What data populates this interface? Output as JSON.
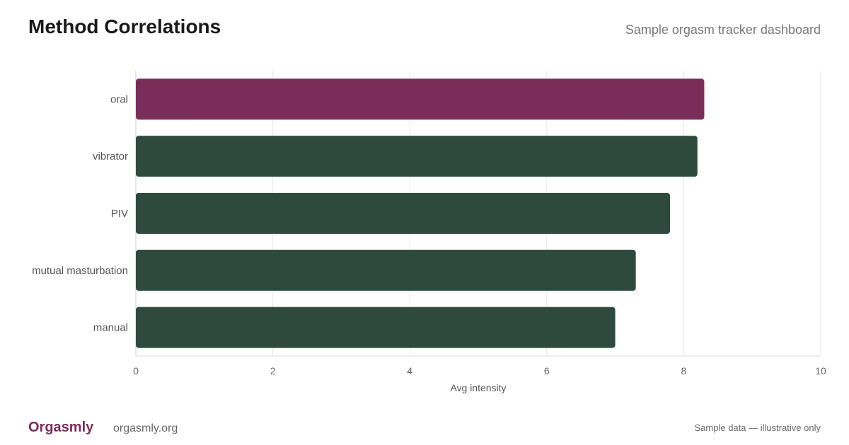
{
  "header": {
    "title": "Method Correlations",
    "subtitle": "Sample orgasm tracker dashboard"
  },
  "footer": {
    "brand": "Orgasmly",
    "site": "orgasmly.org",
    "note": "Sample data — illustrative only"
  },
  "colors": {
    "highlight": "#7b2d5a",
    "default": "#2e4a3f",
    "brand": "#7b2d5a",
    "grid": "#e6e6e6"
  },
  "chart_data": {
    "type": "bar",
    "orientation": "horizontal",
    "categories": [
      "oral",
      "vibrator",
      "PIV",
      "mutual masturbation",
      "manual"
    ],
    "values": [
      8.3,
      8.2,
      7.8,
      7.3,
      7.0
    ],
    "highlight_index": 0,
    "xlabel": "Avg intensity",
    "ylabel": "",
    "xlim": [
      0,
      10
    ],
    "xticks": [
      "0",
      "2",
      "4",
      "6",
      "8",
      "10"
    ],
    "grid": true,
    "legend": "none"
  }
}
